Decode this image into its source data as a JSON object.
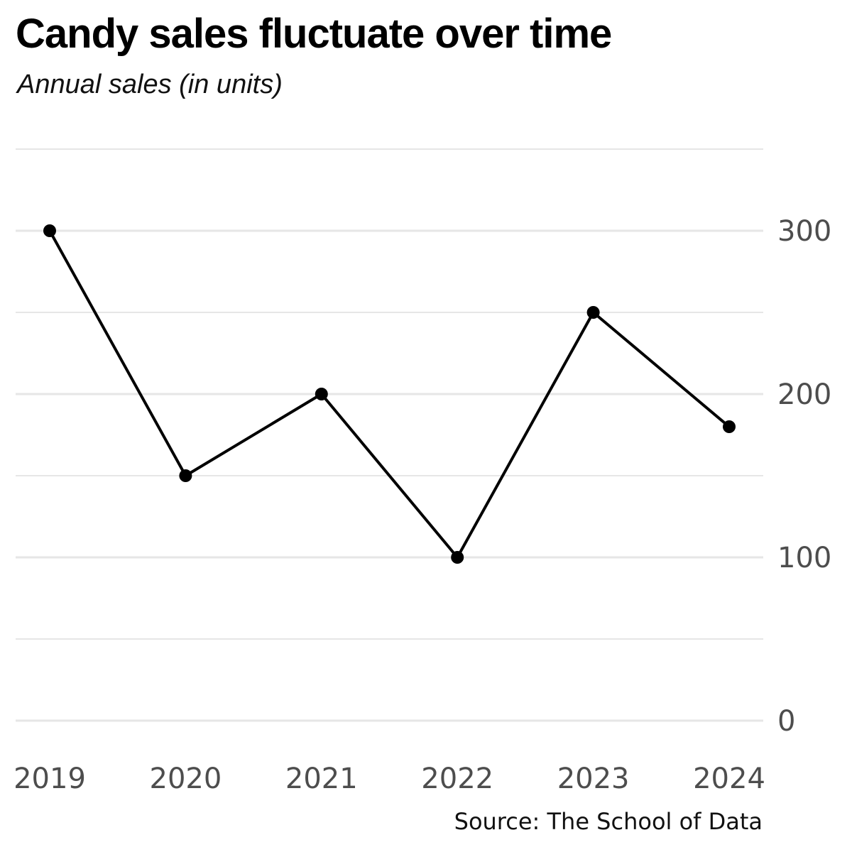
{
  "chart_data": {
    "type": "line",
    "title": "Candy sales fluctuate over time",
    "subtitle": "Annual sales (in units)",
    "source": "Source: The School of Data",
    "xlabel": "",
    "ylabel": "",
    "categories": [
      "2019",
      "2020",
      "2021",
      "2022",
      "2023",
      "2024"
    ],
    "values": [
      300,
      150,
      200,
      100,
      250,
      180
    ],
    "ylim": [
      0,
      350
    ],
    "yticks": [
      0,
      100,
      200,
      300
    ],
    "y_axis_position": "right",
    "grid": true,
    "markers": true,
    "line_color": "#000000",
    "grid_color": "#e6e6e6",
    "tick_color": "#4d4d4d"
  }
}
